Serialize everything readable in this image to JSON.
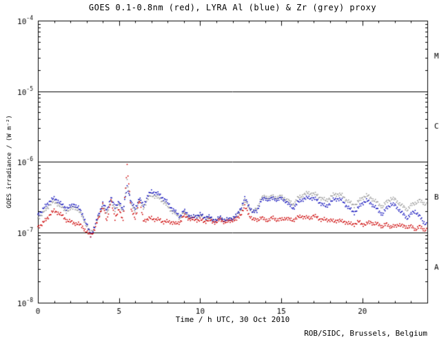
{
  "header": {
    "title": "GOES 0.1-0.8nm (red), LYRA Al (blue) & Zr (grey) proxy"
  },
  "axes": {
    "xlabel": "Time / h UTC, 30 Oct 2010",
    "ylabel": "GOES irradiance / (W m⁻²)"
  },
  "footer": {
    "credit": "ROB/SIDC, Brussels, Belgium"
  },
  "colors": {
    "red": "#cc0000",
    "blue": "#1111bb",
    "grey": "#999999",
    "axis": "#000000"
  },
  "chart_data": {
    "type": "scatter",
    "title": "GOES 0.1-0.8nm (red), LYRA Al (blue) & Zr (grey) proxy",
    "xlabel": "Time / h UTC, 30 Oct 2010",
    "ylabel": "GOES irradiance / (W m-2)",
    "x_range": [
      0,
      24
    ],
    "y_range": [
      1e-08,
      0.0001
    ],
    "y_scale": "log",
    "x_ticks": [
      0,
      5,
      10,
      15,
      20
    ],
    "y_tick_exponents": [
      -4,
      -5,
      -6,
      -7,
      -8
    ],
    "hlines": [
      1e-05,
      1e-06,
      1e-07
    ],
    "class_labels": [
      {
        "label": "M",
        "y_value": 3.2e-05
      },
      {
        "label": "C",
        "y_value": 3.2e-06
      },
      {
        "label": "B",
        "y_value": 3.2e-07
      },
      {
        "label": "A",
        "y_value": 3.2e-08
      }
    ],
    "x": [
      0,
      0.25,
      0.5,
      0.75,
      1,
      1.25,
      1.5,
      1.75,
      2,
      2.25,
      2.5,
      2.75,
      3,
      3.25,
      3.5,
      3.75,
      4,
      4.25,
      4.5,
      4.75,
      5,
      5.25,
      5.5,
      5.75,
      6,
      6.25,
      6.5,
      6.75,
      7,
      7.25,
      7.5,
      7.75,
      8,
      8.25,
      8.5,
      8.75,
      9,
      9.25,
      9.5,
      9.75,
      10,
      10.25,
      10.5,
      10.75,
      11,
      11.25,
      11.5,
      11.75,
      12,
      12.25,
      12.5,
      12.75,
      13,
      13.25,
      13.5,
      13.75,
      14,
      14.25,
      14.5,
      14.75,
      15,
      15.25,
      15.5,
      15.75,
      16,
      16.25,
      16.5,
      16.75,
      17,
      17.25,
      17.5,
      17.75,
      18,
      18.25,
      18.5,
      18.75,
      19,
      19.25,
      19.5,
      19.75,
      20,
      20.25,
      20.5,
      20.75,
      21,
      21.25,
      21.5,
      21.75,
      22,
      22.25,
      22.5,
      22.75,
      23,
      23.25,
      23.5,
      23.75,
      24
    ],
    "series": [
      {
        "name": "GOES 0.1-0.8nm",
        "color": "red",
        "values": [
          1.2e-07,
          1.3e-07,
          1.5e-07,
          1.8e-07,
          2e-07,
          1.9e-07,
          1.7e-07,
          1.5e-07,
          1.4e-07,
          1.35e-07,
          1.3e-07,
          1.2e-07,
          1e-07,
          9e-08,
          1.1e-07,
          1.6e-07,
          2.5e-07,
          1.4e-07,
          3e-07,
          1.5e-07,
          2.2e-07,
          1.4e-07,
          9e-07,
          2e-07,
          1.6e-07,
          2.8e-07,
          1.5e-07,
          1.5e-07,
          1.6e-07,
          1.5e-07,
          1.5e-07,
          1.4e-07,
          1.4e-07,
          1.4e-07,
          1.3e-07,
          1.4e-07,
          1.7e-07,
          1.6e-07,
          1.5e-07,
          1.5e-07,
          1.5e-07,
          1.4e-07,
          1.5e-07,
          1.4e-07,
          1.4e-07,
          1.5e-07,
          1.4e-07,
          1.4e-07,
          1.5e-07,
          1.5e-07,
          1.8e-07,
          2.3e-07,
          1.8e-07,
          1.5e-07,
          1.5e-07,
          1.6e-07,
          1.5e-07,
          1.5e-07,
          1.6e-07,
          1.5e-07,
          1.5e-07,
          1.6e-07,
          1.5e-07,
          1.5e-07,
          1.6e-07,
          1.7e-07,
          1.6e-07,
          1.6e-07,
          1.7e-07,
          1.6e-07,
          1.5e-07,
          1.5e-07,
          1.5e-07,
          1.4e-07,
          1.5e-07,
          1.4e-07,
          1.4e-07,
          1.3e-07,
          1.3e-07,
          1.4e-07,
          1.3e-07,
          1.3e-07,
          1.4e-07,
          1.3e-07,
          1.3e-07,
          1.2e-07,
          1.3e-07,
          1.2e-07,
          1.2e-07,
          1.3e-07,
          1.2e-07,
          1.2e-07,
          1.2e-07,
          1.1e-07,
          1.2e-07,
          1.1e-07,
          1.1e-07
        ]
      },
      {
        "name": "LYRA Al proxy",
        "color": "blue",
        "values": [
          1.8e-07,
          2e-07,
          2.4e-07,
          2.8e-07,
          3e-07,
          2.8e-07,
          2.4e-07,
          2.2e-07,
          2.3e-07,
          2.5e-07,
          2.2e-07,
          1.8e-07,
          1.3e-07,
          9e-08,
          1.2e-07,
          1.8e-07,
          2.6e-07,
          2e-07,
          3.2e-07,
          2.2e-07,
          2.8e-07,
          2e-07,
          4.5e-07,
          2.6e-07,
          2.2e-07,
          3e-07,
          2.4e-07,
          3.2e-07,
          3.8e-07,
          3.6e-07,
          3.4e-07,
          3e-07,
          2.6e-07,
          2.2e-07,
          1.9e-07,
          1.7e-07,
          2e-07,
          1.8e-07,
          1.6e-07,
          1.7e-07,
          1.8e-07,
          1.6e-07,
          1.7e-07,
          1.5e-07,
          1.5e-07,
          1.6e-07,
          1.5e-07,
          1.5e-07,
          1.6e-07,
          1.7e-07,
          2.2e-07,
          3e-07,
          2.4e-07,
          1.9e-07,
          2e-07,
          2.8e-07,
          3e-07,
          2.9e-07,
          3e-07,
          2.9e-07,
          3e-07,
          2.8e-07,
          2.4e-07,
          2.2e-07,
          2.6e-07,
          2.9e-07,
          3e-07,
          3.1e-07,
          3e-07,
          2.8e-07,
          2.5e-07,
          2.3e-07,
          2.6e-07,
          2.9e-07,
          3e-07,
          2.8e-07,
          2.4e-07,
          2.1e-07,
          1.9e-07,
          2.2e-07,
          2.6e-07,
          2.8e-07,
          2.6e-07,
          2.3e-07,
          2e-07,
          1.8e-07,
          2.2e-07,
          2.5e-07,
          2.4e-07,
          2.1e-07,
          1.8e-07,
          1.6e-07,
          1.8e-07,
          2e-07,
          1.7e-07,
          1.4e-07,
          1.3e-07
        ]
      },
      {
        "name": "LYRA Zr proxy",
        "color": "grey",
        "values": [
          1.6e-07,
          1.8e-07,
          2.1e-07,
          2.5e-07,
          2.7e-07,
          2.5e-07,
          2.2e-07,
          2e-07,
          2.1e-07,
          2.3e-07,
          2e-07,
          1.7e-07,
          1.2e-07,
          1e-07,
          1.2e-07,
          1.7e-07,
          2.4e-07,
          1.8e-07,
          2.9e-07,
          2e-07,
          2.6e-07,
          1.9e-07,
          5.5e-07,
          2.4e-07,
          2e-07,
          2.8e-07,
          2.2e-07,
          2.9e-07,
          3.4e-07,
          3.2e-07,
          3e-07,
          2.7e-07,
          2.3e-07,
          2e-07,
          1.8e-07,
          1.6e-07,
          1.9e-07,
          1.7e-07,
          1.6e-07,
          1.7e-07,
          1.7e-07,
          1.6e-07,
          1.6e-07,
          1.5e-07,
          1.5e-07,
          1.6e-07,
          1.5e-07,
          1.5e-07,
          1.6e-07,
          1.7e-07,
          2.1e-07,
          2.8e-07,
          2.3e-07,
          1.9e-07,
          2.2e-07,
          3e-07,
          3.2e-07,
          3.1e-07,
          3.2e-07,
          3.1e-07,
          3.2e-07,
          3e-07,
          2.7e-07,
          2.5e-07,
          3e-07,
          3.3e-07,
          3.5e-07,
          3.6e-07,
          3.5e-07,
          3.3e-07,
          3e-07,
          2.8e-07,
          3.1e-07,
          3.4e-07,
          3.5e-07,
          3.3e-07,
          2.9e-07,
          2.6e-07,
          2.4e-07,
          2.7e-07,
          3.1e-07,
          3.3e-07,
          3.1e-07,
          2.8e-07,
          2.5e-07,
          2.3e-07,
          2.7e-07,
          3e-07,
          2.9e-07,
          2.6e-07,
          2.3e-07,
          2.1e-07,
          2.4e-07,
          2.6e-07,
          2.8e-07,
          2.6e-07,
          2.5e-07
        ]
      }
    ]
  }
}
